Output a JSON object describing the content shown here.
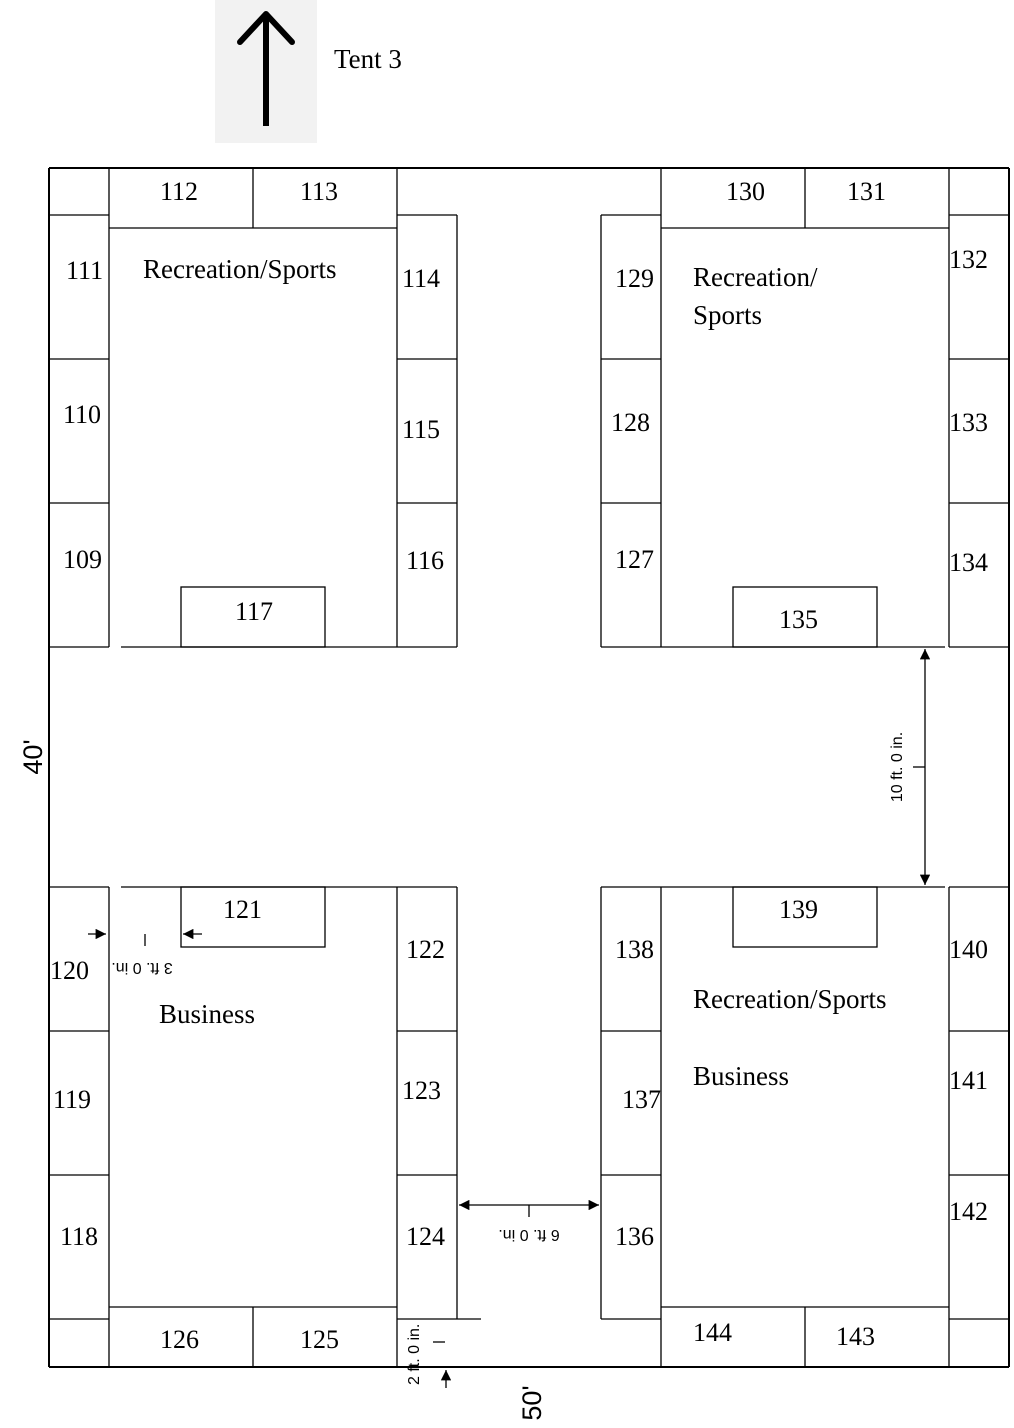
{
  "title": "Tent 3",
  "dimensions": {
    "height": "40'",
    "width": "50'",
    "aisle_main": "10 ft. 0 in.",
    "aisle_center": "6 ft. 0 in.",
    "gap_left": "3 ft. 0 in.",
    "gap_bottom": "2 ft. 0 in."
  },
  "zones": {
    "top_left": "Recreation/Sports",
    "top_right_line1": "Recreation/",
    "top_right_line2": "Sports",
    "bottom_left": "Business",
    "bottom_right_line1": "Recreation/Sports",
    "bottom_right_line2": "Business"
  },
  "booths": {
    "b109": "109",
    "b110": "110",
    "b111": "111",
    "b112": "112",
    "b113": "113",
    "b114": "114",
    "b115": "115",
    "b116": "116",
    "b117": "117",
    "b118": "118",
    "b119": "119",
    "b120": "120",
    "b121": "121",
    "b122": "122",
    "b123": "123",
    "b124": "124",
    "b125": "125",
    "b126": "126",
    "b127": "127",
    "b128": "128",
    "b129": "129",
    "b130": "130",
    "b131": "131",
    "b132": "132",
    "b133": "133",
    "b134": "134",
    "b135": "135",
    "b136": "136",
    "b137": "137",
    "b138": "138",
    "b139": "139",
    "b140": "140",
    "b141": "141",
    "b142": "142",
    "b143": "143",
    "b144": "144"
  },
  "colors": {
    "line": "#000000",
    "arrow_bg": "#f2f2f2"
  }
}
